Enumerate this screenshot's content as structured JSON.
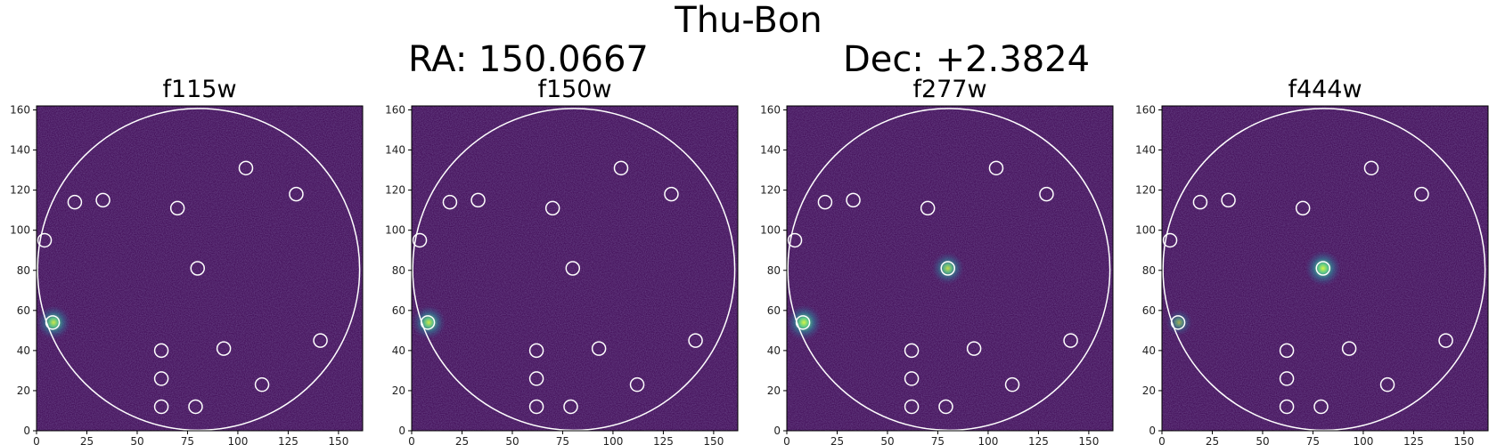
{
  "figure": {
    "title": "Thu-Bon",
    "ra_text": "RA: 150.0667",
    "dec_text": "Dec: +2.3824"
  },
  "colors": {
    "background": "#44105a",
    "circle": "#ffffff",
    "source_core": "#b8f23a",
    "source_glow": "#2fb0a0"
  },
  "chart_data": [
    {
      "type": "heatmap",
      "title": "f115w",
      "xlim": [
        0,
        162
      ],
      "ylim": [
        0,
        162
      ],
      "xticks": [
        0,
        25,
        50,
        75,
        100,
        125,
        150
      ],
      "yticks": [
        0,
        20,
        40,
        60,
        80,
        100,
        120,
        140,
        160
      ],
      "aperture": {
        "x": 80.5,
        "y": 80.5,
        "r": 80
      },
      "markers": [
        [
          104,
          131
        ],
        [
          19,
          114
        ],
        [
          33,
          115
        ],
        [
          70,
          111
        ],
        [
          129,
          118
        ],
        [
          4,
          95
        ],
        [
          80,
          81
        ],
        [
          8,
          54
        ],
        [
          62,
          40
        ],
        [
          93,
          41
        ],
        [
          141,
          45
        ],
        [
          62,
          26
        ],
        [
          112,
          23
        ],
        [
          62,
          12
        ],
        [
          79,
          12
        ]
      ],
      "bright_sources": [
        {
          "x": 8.5,
          "y": 54,
          "intensity": 0.9
        }
      ]
    },
    {
      "type": "heatmap",
      "title": "f150w",
      "xlim": [
        0,
        162
      ],
      "ylim": [
        0,
        162
      ],
      "xticks": [
        0,
        25,
        50,
        75,
        100,
        125,
        150
      ],
      "yticks": [
        0,
        20,
        40,
        60,
        80,
        100,
        120,
        140,
        160
      ],
      "aperture": {
        "x": 80.5,
        "y": 80.5,
        "r": 80
      },
      "markers": [
        [
          104,
          131
        ],
        [
          19,
          114
        ],
        [
          33,
          115
        ],
        [
          70,
          111
        ],
        [
          129,
          118
        ],
        [
          4,
          95
        ],
        [
          80,
          81
        ],
        [
          8,
          54
        ],
        [
          62,
          40
        ],
        [
          93,
          41
        ],
        [
          141,
          45
        ],
        [
          62,
          26
        ],
        [
          112,
          23
        ],
        [
          62,
          12
        ],
        [
          79,
          12
        ]
      ],
      "bright_sources": [
        {
          "x": 8.5,
          "y": 54,
          "intensity": 0.9
        }
      ]
    },
    {
      "type": "heatmap",
      "title": "f277w",
      "xlim": [
        0,
        162
      ],
      "ylim": [
        0,
        162
      ],
      "xticks": [
        0,
        25,
        50,
        75,
        100,
        125,
        150
      ],
      "yticks": [
        0,
        20,
        40,
        60,
        80,
        100,
        120,
        140,
        160
      ],
      "aperture": {
        "x": 80.5,
        "y": 80.5,
        "r": 80
      },
      "markers": [
        [
          104,
          131
        ],
        [
          19,
          114
        ],
        [
          33,
          115
        ],
        [
          70,
          111
        ],
        [
          129,
          118
        ],
        [
          4,
          95
        ],
        [
          80,
          81
        ],
        [
          8,
          54
        ],
        [
          62,
          40
        ],
        [
          93,
          41
        ],
        [
          141,
          45
        ],
        [
          62,
          26
        ],
        [
          112,
          23
        ],
        [
          62,
          12
        ],
        [
          79,
          12
        ]
      ],
      "bright_sources": [
        {
          "x": 8.5,
          "y": 54,
          "intensity": 1.0
        },
        {
          "x": 80,
          "y": 81,
          "intensity": 0.8
        }
      ]
    },
    {
      "type": "heatmap",
      "title": "f444w",
      "xlim": [
        0,
        162
      ],
      "ylim": [
        0,
        162
      ],
      "xticks": [
        0,
        25,
        50,
        75,
        100,
        125,
        150
      ],
      "yticks": [
        0,
        20,
        40,
        60,
        80,
        100,
        120,
        140,
        160
      ],
      "aperture": {
        "x": 80.5,
        "y": 80.5,
        "r": 80
      },
      "markers": [
        [
          104,
          131
        ],
        [
          19,
          114
        ],
        [
          33,
          115
        ],
        [
          70,
          111
        ],
        [
          129,
          118
        ],
        [
          4,
          95
        ],
        [
          80,
          81
        ],
        [
          8,
          54
        ],
        [
          62,
          40
        ],
        [
          93,
          41
        ],
        [
          141,
          45
        ],
        [
          62,
          26
        ],
        [
          112,
          23
        ],
        [
          62,
          12
        ],
        [
          79,
          12
        ]
      ],
      "bright_sources": [
        {
          "x": 8.5,
          "y": 54,
          "intensity": 0.45
        },
        {
          "x": 80,
          "y": 81,
          "intensity": 1.0
        }
      ]
    }
  ]
}
